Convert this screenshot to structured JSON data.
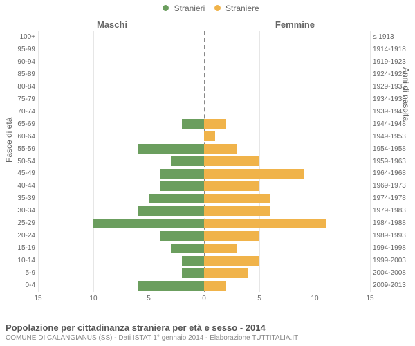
{
  "legend": {
    "items": [
      {
        "label": "Stranieri",
        "color": "#6b9e5e"
      },
      {
        "label": "Straniere",
        "color": "#f0b34a"
      }
    ]
  },
  "column_titles": {
    "left": "Maschi",
    "right": "Femmine"
  },
  "axis_titles": {
    "left": "Fasce di età",
    "right": "Anni di nascita"
  },
  "x_axis": {
    "min": -15,
    "max": 15,
    "tick_step": 5
  },
  "colors": {
    "male": "#6b9e5e",
    "female": "#f0b34a",
    "grid": "#e6e6e6",
    "center": "#888888",
    "text": "#666666"
  },
  "rows": [
    {
      "age": "100+",
      "birth": "≤ 1913",
      "male": 0,
      "female": 0
    },
    {
      "age": "95-99",
      "birth": "1914-1918",
      "male": 0,
      "female": 0
    },
    {
      "age": "90-94",
      "birth": "1919-1923",
      "male": 0,
      "female": 0
    },
    {
      "age": "85-89",
      "birth": "1924-1928",
      "male": 0,
      "female": 0
    },
    {
      "age": "80-84",
      "birth": "1929-1933",
      "male": 0,
      "female": 0
    },
    {
      "age": "75-79",
      "birth": "1934-1938",
      "male": 0,
      "female": 0
    },
    {
      "age": "70-74",
      "birth": "1939-1943",
      "male": 0,
      "female": 0
    },
    {
      "age": "65-69",
      "birth": "1944-1948",
      "male": 2,
      "female": 2
    },
    {
      "age": "60-64",
      "birth": "1949-1953",
      "male": 0,
      "female": 1
    },
    {
      "age": "55-59",
      "birth": "1954-1958",
      "male": 6,
      "female": 3
    },
    {
      "age": "50-54",
      "birth": "1959-1963",
      "male": 3,
      "female": 5
    },
    {
      "age": "45-49",
      "birth": "1964-1968",
      "male": 4,
      "female": 9
    },
    {
      "age": "40-44",
      "birth": "1969-1973",
      "male": 4,
      "female": 5
    },
    {
      "age": "35-39",
      "birth": "1974-1978",
      "male": 5,
      "female": 6
    },
    {
      "age": "30-34",
      "birth": "1979-1983",
      "male": 6,
      "female": 6
    },
    {
      "age": "25-29",
      "birth": "1984-1988",
      "male": 10,
      "female": 11
    },
    {
      "age": "20-24",
      "birth": "1989-1993",
      "male": 4,
      "female": 5
    },
    {
      "age": "15-19",
      "birth": "1994-1998",
      "male": 3,
      "female": 3
    },
    {
      "age": "10-14",
      "birth": "1999-2003",
      "male": 2,
      "female": 5
    },
    {
      "age": "5-9",
      "birth": "2004-2008",
      "male": 2,
      "female": 4
    },
    {
      "age": "0-4",
      "birth": "2009-2013",
      "male": 6,
      "female": 2
    }
  ],
  "footer": {
    "title": "Popolazione per cittadinanza straniera per età e sesso - 2014",
    "subtitle": "COMUNE DI CALANGIANUS (SS) - Dati ISTAT 1° gennaio 2014 - Elaborazione TUTTITALIA.IT"
  }
}
